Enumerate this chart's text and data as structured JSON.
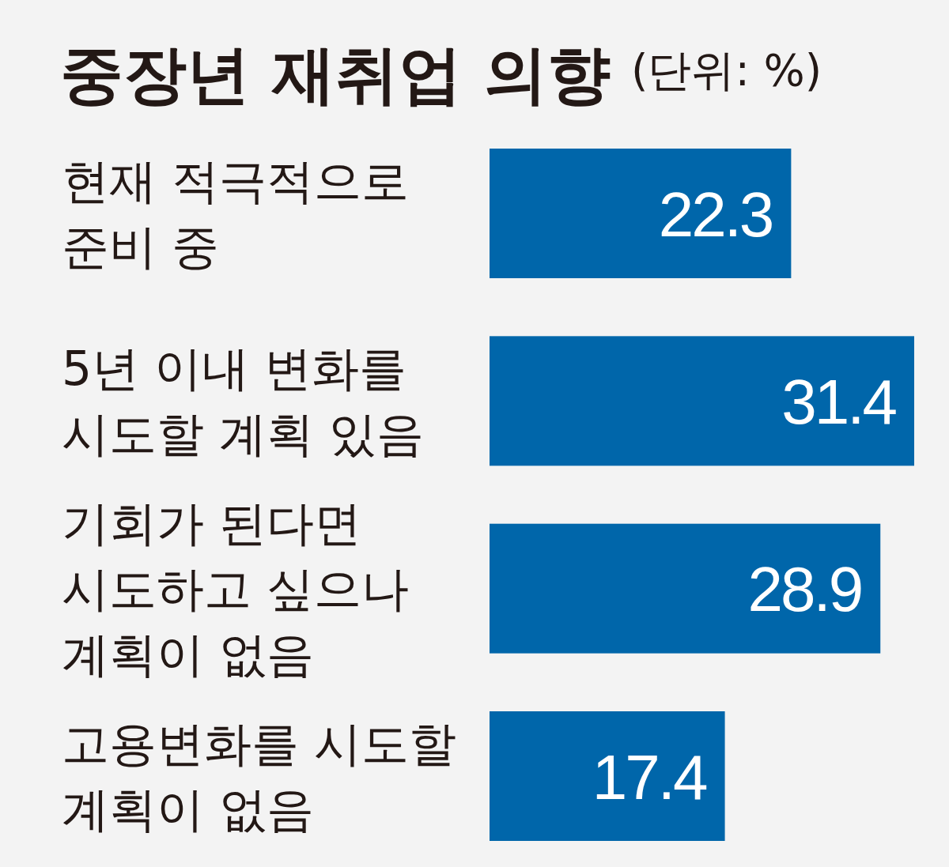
{
  "chart_data": {
    "type": "bar",
    "orientation": "horizontal",
    "title": "중장년 재취업 의향",
    "subtitle": "(단위: %)",
    "categories": [
      "현재 적극적으로\n준비 중",
      "5년 이내 변화를\n시도할 계획 있음",
      "기회가 된다면\n시도하고 싶으나\n계획이 없음",
      "고용변화를 시도할\n계획이 없음"
    ],
    "values": [
      22.3,
      31.4,
      28.9,
      17.4
    ],
    "color": "#0066aa",
    "data_labels": true
  }
}
